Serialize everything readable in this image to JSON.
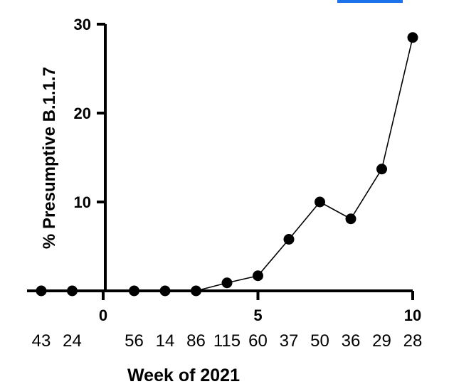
{
  "chart_data": {
    "type": "line",
    "xlabel": "Week of 2021",
    "ylabel": "% Presumptive B.1.1.7",
    "xlim": [
      -2,
      10
    ],
    "ylim": [
      0,
      30
    ],
    "xticks": [
      0,
      5,
      10
    ],
    "xtick_labels": [
      "0",
      "5",
      "10"
    ],
    "yticks": [
      10,
      20,
      30
    ],
    "ytick_labels": [
      "10",
      "20",
      "30"
    ],
    "series": [
      {
        "x": [
          -2,
          -1,
          1,
          2,
          3,
          4,
          5,
          6,
          7,
          8,
          9,
          10
        ],
        "y": [
          0,
          0,
          0,
          0,
          0,
          0.9,
          1.7,
          5.8,
          10.0,
          8.1,
          13.7,
          28.5
        ]
      }
    ],
    "sample_counts": [
      {
        "x": -2,
        "label": "43"
      },
      {
        "x": -1,
        "label": "24"
      },
      {
        "x": 1,
        "label": "56"
      },
      {
        "x": 2,
        "label": "14"
      },
      {
        "x": 3,
        "label": "86"
      },
      {
        "x": 4,
        "label": "115"
      },
      {
        "x": 5,
        "label": "60"
      },
      {
        "x": 6,
        "label": "37"
      },
      {
        "x": 7,
        "label": "50"
      },
      {
        "x": 8,
        "label": "36"
      },
      {
        "x": 9,
        "label": "29"
      },
      {
        "x": 10,
        "label": "28"
      }
    ],
    "grid": false,
    "marker": "filled-circle",
    "line_color": "#000000"
  }
}
